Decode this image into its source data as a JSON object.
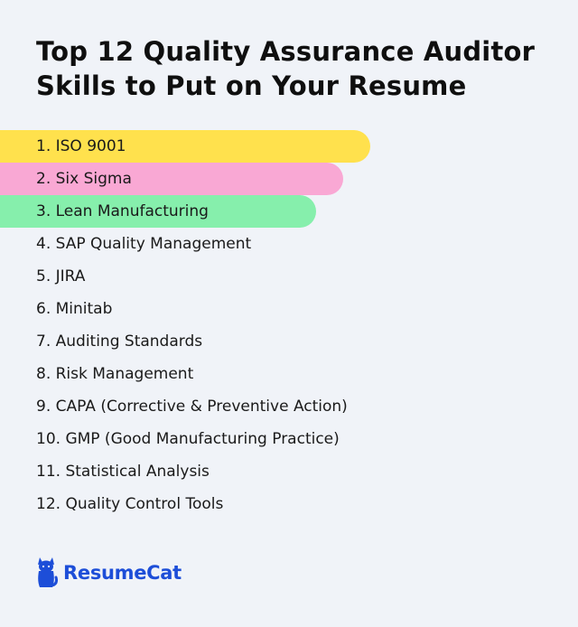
{
  "title": "Top 12 Quality Assurance Auditor Skills to Put on Your Resume",
  "skills": [
    {
      "label": "1. ISO 9001"
    },
    {
      "label": "2. Six Sigma"
    },
    {
      "label": "3. Lean Manufacturing"
    },
    {
      "label": "4. SAP Quality Management"
    },
    {
      "label": "5. JIRA"
    },
    {
      "label": "6. Minitab"
    },
    {
      "label": "7. Auditing Standards"
    },
    {
      "label": "8. Risk Management"
    },
    {
      "label": "9. CAPA (Corrective & Preventive Action)"
    },
    {
      "label": "10. GMP (Good Manufacturing Practice)"
    },
    {
      "label": "11. Statistical Analysis"
    },
    {
      "label": "12. Quality Control Tools"
    }
  ],
  "highlight_colors": [
    "#ffe14d",
    "#f9a8d4",
    "#86efac"
  ],
  "brand": {
    "name": "ResumeCat",
    "icon": "cat-icon",
    "color": "#1d4ed8"
  }
}
